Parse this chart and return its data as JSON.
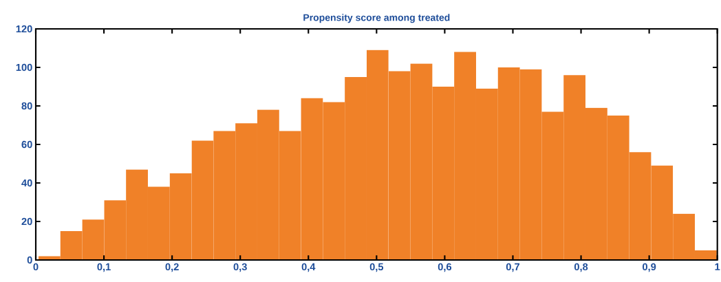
{
  "chart_data": {
    "type": "histogram",
    "title": "Propensity score among treated",
    "bins": [
      0.004,
      0.0361,
      0.0682,
      0.1003,
      0.1324,
      0.1645,
      0.1966,
      0.2287,
      0.2608,
      0.2929,
      0.325,
      0.3571,
      0.3892,
      0.4213,
      0.4534,
      0.4855,
      0.5176,
      0.5497,
      0.5818,
      0.6139,
      0.646,
      0.6781,
      0.7102,
      0.7423,
      0.7744,
      0.8065,
      0.8386,
      0.8707,
      0.9028,
      0.9349,
      0.967,
      0.9991
    ],
    "values": [
      2,
      15,
      21,
      31,
      47,
      38,
      45,
      62,
      67,
      71,
      78,
      67,
      84,
      82,
      95,
      109,
      98,
      102,
      90,
      108,
      89,
      100,
      99,
      77,
      96,
      79,
      75,
      56,
      49,
      24,
      5
    ],
    "color": "#f08128",
    "xlim": [
      0,
      1
    ],
    "ylim": [
      0,
      120
    ],
    "xticks": [
      0,
      {
        "value": 0.1,
        "label": "0,1"
      },
      {
        "value": 0.2,
        "label": "0,2"
      },
      {
        "value": 0.3,
        "label": "0,3"
      },
      {
        "value": 0.4,
        "label": "0,4"
      },
      {
        "value": 0.5,
        "label": "0,5"
      },
      {
        "value": 0.6,
        "label": "0,6"
      },
      {
        "value": 0.7,
        "label": "0,7"
      },
      {
        "value": 0.8,
        "label": "0,8"
      },
      {
        "value": 0.9,
        "label": "0,9"
      },
      1
    ],
    "yticks": [
      0,
      20,
      40,
      60,
      80,
      100,
      120
    ]
  }
}
